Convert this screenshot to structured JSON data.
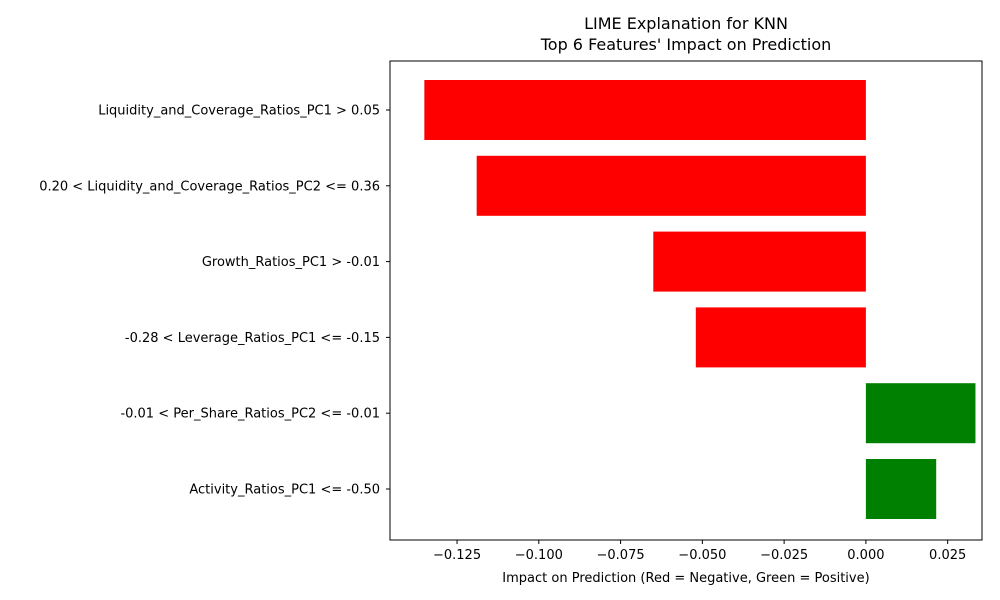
{
  "chart_data": {
    "type": "bar",
    "orientation": "horizontal",
    "title": "LIME Explanation for KNN",
    "subtitle": "Top 6 Features' Impact on Prediction",
    "xlabel": "Impact on Prediction (Red = Negative, Green = Positive)",
    "ylabel": "",
    "xlim": [
      -0.1455,
      0.0355
    ],
    "xticks": [
      -0.125,
      -0.1,
      -0.075,
      -0.05,
      -0.025,
      0.0,
      0.025
    ],
    "xtick_labels": [
      "−0.125",
      "−0.100",
      "−0.075",
      "−0.050",
      "−0.025",
      "0.000",
      "0.025"
    ],
    "grid": false,
    "categories": [
      "Liquidity_and_Coverage_Ratios_PC1 > 0.05",
      "0.20 < Liquidity_and_Coverage_Ratios_PC2 <= 0.36",
      "Growth_Ratios_PC1 > -0.01",
      "-0.28 < Leverage_Ratios_PC1 <= -0.15",
      "-0.01 < Per_Share_Ratios_PC2 <= -0.01",
      "Activity_Ratios_PC1 <= -0.50"
    ],
    "values": [
      -0.135,
      -0.119,
      -0.065,
      -0.052,
      0.0335,
      0.0215
    ],
    "colors": {
      "negative": "#ff0000",
      "positive": "#008000"
    }
  }
}
